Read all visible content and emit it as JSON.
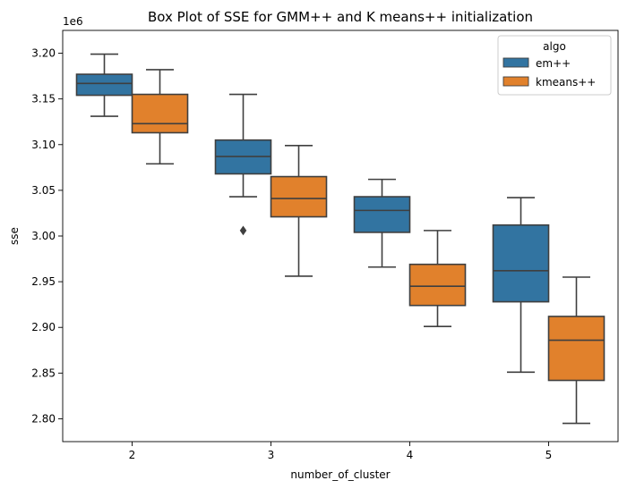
{
  "chart_data": {
    "type": "box",
    "title": "Box Plot of SSE for GMM++ and K means++ initialization",
    "xlabel": "number_of_cluster",
    "ylabel": "sse",
    "y_offset_label": "1e6",
    "categories": [
      "2",
      "3",
      "4",
      "5"
    ],
    "ylim": [
      2.775,
      3.225
    ],
    "yticks": [
      2.8,
      2.85,
      2.9,
      2.95,
      3.0,
      3.05,
      3.1,
      3.15,
      3.2
    ],
    "ytick_labels": [
      "2.80",
      "2.85",
      "2.90",
      "2.95",
      "3.00",
      "3.05",
      "3.10",
      "3.15",
      "3.20"
    ],
    "legend": {
      "title": "algo",
      "position": "top-right"
    },
    "grid": false,
    "series": [
      {
        "name": "em++",
        "color": "#3274a1",
        "boxes": [
          {
            "whisker_low": 3.131,
            "q1": 3.154,
            "median": 3.167,
            "q3": 3.177,
            "whisker_high": 3.199,
            "outliers": []
          },
          {
            "whisker_low": 3.043,
            "q1": 3.068,
            "median": 3.087,
            "q3": 3.105,
            "whisker_high": 3.155,
            "outliers": [
              3.006
            ]
          },
          {
            "whisker_low": 2.966,
            "q1": 3.004,
            "median": 3.028,
            "q3": 3.043,
            "whisker_high": 3.062,
            "outliers": []
          },
          {
            "whisker_low": 2.851,
            "q1": 2.928,
            "median": 2.962,
            "q3": 3.012,
            "whisker_high": 3.042,
            "outliers": []
          }
        ]
      },
      {
        "name": "kmeans++",
        "color": "#e1812c",
        "boxes": [
          {
            "whisker_low": 3.079,
            "q1": 3.113,
            "median": 3.123,
            "q3": 3.155,
            "whisker_high": 3.182,
            "outliers": []
          },
          {
            "whisker_low": 2.956,
            "q1": 3.021,
            "median": 3.041,
            "q3": 3.065,
            "whisker_high": 3.099,
            "outliers": []
          },
          {
            "whisker_low": 2.901,
            "q1": 2.924,
            "median": 2.945,
            "q3": 2.969,
            "whisker_high": 3.006,
            "outliers": []
          },
          {
            "whisker_low": 2.795,
            "q1": 2.842,
            "median": 2.886,
            "q3": 2.912,
            "whisker_high": 2.955,
            "outliers": []
          }
        ]
      }
    ]
  }
}
